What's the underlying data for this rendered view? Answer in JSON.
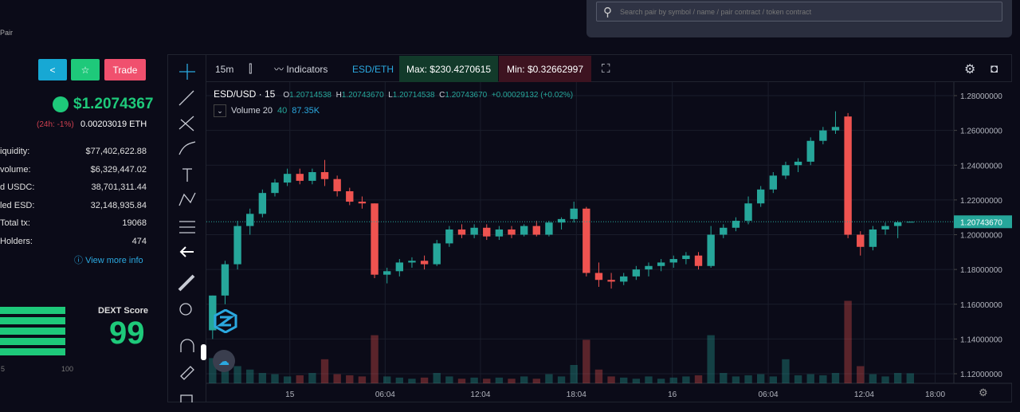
{
  "left_panel": {
    "pair_label": "Pair",
    "buttons": {
      "trade": "Trade"
    },
    "price": "$1.2074367",
    "change": "(24h: -1%)",
    "eth_price": "0.00203019 ETH",
    "stats": [
      {
        "label": "iquidity:",
        "value": "$77,402,622.88"
      },
      {
        "label": "volume:",
        "value": "$6,329,447.02"
      },
      {
        "label": "d USDC:",
        "value": "38,701,311.44"
      },
      {
        "label": "led ESD:",
        "value": "32,148,935.84"
      },
      {
        "label": "Total tx:",
        "value": "19068"
      },
      {
        "label": "Holders:",
        "value": "474"
      }
    ],
    "more_info": "View more info",
    "score_title": "DEXT Score",
    "score": "99",
    "score_axis": [
      "5",
      "100"
    ]
  },
  "search": {
    "placeholder": "Search pair by symbol / name / pair contract / token contract"
  },
  "toolbar": {
    "interval": "15m",
    "indicators": "Indicators",
    "pair": "ESD/ETH",
    "max": "Max: $230.4270615",
    "min": "Min: $0.32662997"
  },
  "chart": {
    "type": "candlestick",
    "legend": {
      "symbol": "ESD/USD · 15",
      "o_key": "O",
      "o": "1.20714538",
      "h_key": "H",
      "h": "1.20743670",
      "l_key": "L",
      "l": "1.20714538",
      "c_key": "C",
      "c": "1.20743670",
      "change": "+0.00029132 (+0.02%)",
      "volume_name": "Volume 20",
      "volume_period": "40",
      "volume_value": "87.35K"
    },
    "up_color": "#26a69a",
    "down_color": "#ef5350",
    "grid": true,
    "ylim": [
      1.1145,
      1.2878
    ],
    "yticks": [
      {
        "value": 1.28,
        "label": "1.28000000"
      },
      {
        "value": 1.26,
        "label": "1.26000000"
      },
      {
        "value": 1.24,
        "label": "1.24000000"
      },
      {
        "value": 1.22,
        "label": "1.22000000"
      },
      {
        "value": 1.2,
        "label": "1.20000000"
      },
      {
        "value": 1.18,
        "label": "1.18000000"
      },
      {
        "value": 1.16,
        "label": "1.16000000"
      },
      {
        "value": 1.14,
        "label": "1.14000000"
      },
      {
        "value": 1.12,
        "label": "1.12000000"
      }
    ],
    "xlim": [
      0,
      60
    ],
    "xticks": [
      {
        "value": 6.7,
        "label": "15"
      },
      {
        "value": 14.35,
        "label": "06:04"
      },
      {
        "value": 22,
        "label": "12:04"
      },
      {
        "value": 29.7,
        "label": "18:04"
      },
      {
        "value": 37.4,
        "label": "16"
      },
      {
        "value": 45.1,
        "label": "06:04"
      },
      {
        "value": 52.8,
        "label": "12:04"
      },
      {
        "value": 58.5,
        "label": "18:00"
      }
    ],
    "last_price": {
      "value": 1.2074367,
      "label": "1.20743670"
    },
    "vlim": [
      0,
      800
    ],
    "candles": [
      [
        1.145,
        1.165,
        1.14,
        1.165
      ],
      [
        1.165,
        1.185,
        1.16,
        1.183
      ],
      [
        1.183,
        1.208,
        1.18,
        1.205
      ],
      [
        1.205,
        1.215,
        1.2,
        1.212
      ],
      [
        1.212,
        1.226,
        1.21,
        1.224
      ],
      [
        1.224,
        1.232,
        1.222,
        1.23
      ],
      [
        1.23,
        1.238,
        1.228,
        1.235
      ],
      [
        1.235,
        1.238,
        1.229,
        1.231
      ],
      [
        1.231,
        1.238,
        1.229,
        1.236
      ],
      [
        1.236,
        1.243,
        1.228,
        1.232
      ],
      [
        1.232,
        1.234,
        1.222,
        1.225
      ],
      [
        1.225,
        1.227,
        1.217,
        1.219
      ],
      [
        1.219,
        1.222,
        1.215,
        1.218
      ],
      [
        1.218,
        1.218,
        1.175,
        1.177
      ],
      [
        1.177,
        1.181,
        1.172,
        1.179
      ],
      [
        1.179,
        1.186,
        1.176,
        1.184
      ],
      [
        1.184,
        1.187,
        1.181,
        1.185
      ],
      [
        1.185,
        1.188,
        1.18,
        1.183
      ],
      [
        1.183,
        1.197,
        1.182,
        1.195
      ],
      [
        1.195,
        1.205,
        1.193,
        1.203
      ],
      [
        1.203,
        1.206,
        1.198,
        1.2
      ],
      [
        1.2,
        1.206,
        1.198,
        1.204
      ],
      [
        1.204,
        1.206,
        1.197,
        1.199
      ],
      [
        1.199,
        1.205,
        1.197,
        1.203
      ],
      [
        1.203,
        1.205,
        1.198,
        1.2
      ],
      [
        1.2,
        1.206,
        1.199,
        1.205
      ],
      [
        1.205,
        1.208,
        1.199,
        1.2
      ],
      [
        1.2,
        1.208,
        1.199,
        1.207
      ],
      [
        1.207,
        1.21,
        1.203,
        1.209
      ],
      [
        1.209,
        1.219,
        1.207,
        1.215
      ],
      [
        1.215,
        1.216,
        1.176,
        1.178
      ],
      [
        1.178,
        1.184,
        1.17,
        1.174
      ],
      [
        1.174,
        1.178,
        1.169,
        1.173
      ],
      [
        1.173,
        1.178,
        1.171,
        1.176
      ],
      [
        1.176,
        1.182,
        1.174,
        1.18
      ],
      [
        1.18,
        1.184,
        1.176,
        1.182
      ],
      [
        1.182,
        1.186,
        1.179,
        1.184
      ],
      [
        1.184,
        1.188,
        1.181,
        1.186
      ],
      [
        1.186,
        1.19,
        1.183,
        1.188
      ],
      [
        1.188,
        1.19,
        1.18,
        1.182
      ],
      [
        1.182,
        1.205,
        1.181,
        1.2
      ],
      [
        1.2,
        1.206,
        1.198,
        1.204
      ],
      [
        1.204,
        1.21,
        1.202,
        1.208
      ],
      [
        1.208,
        1.222,
        1.206,
        1.218
      ],
      [
        1.218,
        1.228,
        1.216,
        1.226
      ],
      [
        1.226,
        1.236,
        1.224,
        1.234
      ],
      [
        1.234,
        1.242,
        1.232,
        1.24
      ],
      [
        1.24,
        1.244,
        1.236,
        1.242
      ],
      [
        1.242,
        1.256,
        1.24,
        1.254
      ],
      [
        1.254,
        1.262,
        1.252,
        1.26
      ],
      [
        1.26,
        1.271,
        1.258,
        1.262
      ],
      [
        1.268,
        1.27,
        1.198,
        1.2
      ],
      [
        1.2,
        1.202,
        1.188,
        1.193
      ],
      [
        1.193,
        1.205,
        1.191,
        1.203
      ],
      [
        1.203,
        1.207,
        1.2,
        1.205
      ],
      [
        1.205,
        1.208,
        1.198,
        1.20714538
      ],
      [
        1.20714538,
        1.2074367,
        1.20714538,
        1.2074367
      ]
    ],
    "volumes": [
      220,
      180,
      150,
      120,
      90,
      80,
      60,
      70,
      90,
      210,
      80,
      70,
      60,
      420,
      60,
      50,
      40,
      50,
      90,
      60,
      40,
      50,
      40,
      50,
      40,
      60,
      40,
      80,
      60,
      160,
      380,
      120,
      60,
      50,
      40,
      60,
      40,
      50,
      60,
      70,
      420,
      90,
      60,
      70,
      80,
      60,
      210,
      70,
      80,
      70,
      90,
      720,
      150,
      80,
      60,
      90,
      87.35
    ]
  }
}
